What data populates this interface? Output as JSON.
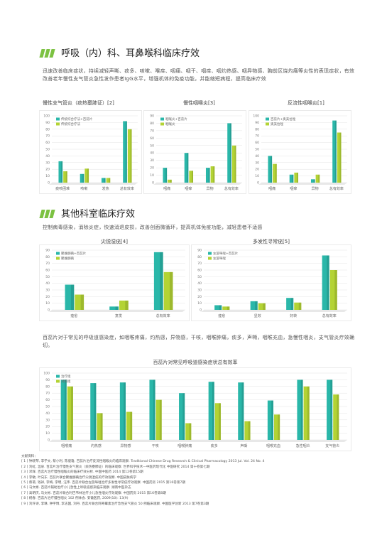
{
  "sections": [
    {
      "heading": "呼吸（内）科、耳鼻喉科临床疗效",
      "text": "迅速改善临床症状，持续减轻声嘶、痰多、咳嗽、喉痒、咽痛、咽干、咽痒、咽灼热感、咽异物感、胸前区烧灼痛等炎性的表现症状，有效改善老年慢性支气管炎急性发作患者IgG水平，增强机体的免疫功能，并能缩短病程，提高临床疗效"
    },
    {
      "heading": "其他科室临床疗效",
      "text": "控制病毒感染，消除炎症，快速消退皮损，改善创面微循环，提高机体免疫功能，减轻患者不适感",
      "text2": "百蕊片对于常见的呼吸道感染症，如咽喉疼痛，灼热感，异物感，干咳，咽喉肿痛，痰多，声嘶，咽喉充血，急慢性咽炎，支气管炎疗效确切。"
    }
  ],
  "chart_data": [
    {
      "type": "bar",
      "title": "慢性支气管炎（痰热壅肺证）[2]",
      "categories": [
        "痰咳困难",
        "咳嗽",
        "发热",
        "总有效率"
      ],
      "series": [
        {
          "name": "传统综合疗法+百蕊片",
          "color": "#2ab7a9",
          "values": [
            32,
            13,
            7,
            92
          ]
        },
        {
          "name": "传统综合疗法",
          "color": "#b3d334",
          "values": [
            17,
            21,
            7,
            80
          ]
        }
      ],
      "ylim": [
        0,
        100
      ],
      "yticks": [
        0,
        10,
        20,
        30,
        40,
        50,
        60,
        70,
        80,
        90,
        100
      ],
      "grid": true
    },
    {
      "type": "bar",
      "title": "慢性咽喉炎[3]",
      "categories": [
        "咽痛",
        "咽痒",
        "异物",
        "总有效率"
      ],
      "series": [
        {
          "name": "咽喉炎+百蕊片",
          "color": "#2ab7a9",
          "values": [
            20,
            40,
            20,
            80
          ]
        },
        {
          "name": "咽喉炎",
          "color": "#b3d334",
          "values": [
            4,
            16,
            22,
            50
          ]
        }
      ],
      "ylim": [
        0,
        90
      ],
      "yticks": [
        0,
        10,
        20,
        30,
        40,
        50,
        60,
        70,
        80,
        90
      ],
      "grid": true
    },
    {
      "type": "bar",
      "title": "反流性咽喉炎[1]",
      "categories": [
        "咽痛",
        "咽痒",
        "异物",
        "总有效率"
      ],
      "series": [
        {
          "name": "百蕊片+奥美拉唑",
          "color": "#2ab7a9",
          "values": [
            40,
            12,
            5,
            93
          ]
        },
        {
          "name": "奥美拉唑",
          "color": "#b3d334",
          "values": [
            28,
            15,
            12,
            75
          ]
        }
      ],
      "ylim": [
        0,
        100
      ],
      "yticks": [
        0,
        10,
        20,
        30,
        40,
        50,
        60,
        70,
        80,
        90,
        100
      ],
      "grid": true
    },
    {
      "type": "bar",
      "title": "尖锐湿疣[4]",
      "categories": [
        "痊愈",
        "复发",
        "总有效率"
      ],
      "series": [
        {
          "name": "聚维酮碘+百蕊片",
          "color": "#2ab7a9",
          "values": [
            38,
            5,
            87
          ]
        },
        {
          "name": "聚维酮碘",
          "color": "#b3d334",
          "values": [
            23,
            14,
            57
          ]
        }
      ],
      "ylim": [
        0,
        90
      ],
      "yticks": [
        0,
        10,
        20,
        30,
        40,
        50,
        60,
        70,
        80,
        90
      ],
      "grid": true
    },
    {
      "type": "bar",
      "title": "多发性寻常疣[5]",
      "categories": [
        "痊愈",
        "显效",
        "好转",
        "总有效率"
      ],
      "series": [
        {
          "name": "左旋咪唑+百蕊片",
          "color": "#2ab7a9",
          "values": [
            7,
            13,
            18,
            82
          ]
        },
        {
          "name": "左旋咪唑",
          "color": "#b3d334",
          "values": [
            5,
            10,
            11,
            60
          ]
        }
      ],
      "ylim": [
        0,
        90
      ],
      "yticks": [
        0,
        10,
        20,
        30,
        40,
        50,
        60,
        70,
        80,
        90
      ],
      "grid": true
    },
    {
      "type": "bar",
      "title": "百蕊片对常见呼吸道感染症状总有效率",
      "categories": [
        "咽喉痛",
        "灼热感",
        "异物感",
        "干咳",
        "咽喉肿痛",
        "痰多",
        "声嘶",
        "咽喉充血",
        "急性咽炎",
        "支气管炎"
      ],
      "series": [
        {
          "name": "治疗组",
          "color": "#2ab7a9",
          "values": [
            90,
            85,
            86,
            90,
            70,
            87,
            86,
            59,
            90,
            90
          ]
        },
        {
          "name": "对照组",
          "color": "#b3d334",
          "values": [
            80,
            40,
            42,
            60,
            25,
            55,
            28,
            38,
            80,
            68
          ]
        }
      ],
      "ylim": [
        0,
        100
      ],
      "yticks": [
        0,
        10,
        20,
        30,
        40,
        50,
        60,
        70,
        80,
        90,
        100
      ],
      "grid": true
    }
  ],
  "references": {
    "title": "文献资料：",
    "items": [
      "[ 1 ] 钟晓琴, 李学文, 蔡小利, 陈俊雄. 百蕊片治疗反流性咽喉炎的临床观察. Traditional Chinese Drug Research & Clinical Pharmacology 2013 Jul. Vol. 24 No. 4",
      "[ 2 ] 刘虹, 温泉. 百蕊片治疗慢性支气管炎（痰热壅肺证）的临床观察. 世界科学技术—中医药现代化 中医研究 2014 第十卷第七期",
      "[ 3 ] 邓辉. 百蕊片治疗慢性咽喉炎的临床疗效分析. 中国中医药 2014 第12卷第15期",
      "[ 4 ] 李敏, 叶向东. 百蕊片联合聚维酮碘治疗尖锐湿疣的疗效观察. 中国皮肤病学",
      "[ 5 ] 蔡菊, 钱祥, 李梅, 李明, 汪伟. 百蕊片联合左旋咪唑治疗多发性寻常疣疗效观察. 中国药房 2015 第16卷第7期",
      "[ 6 ] 马文彬. 百蕊片辅助治疗小儿急性上呼吸道感染临床观察. 湖南中医杂志",
      "[ 7 ] 高明庆, 马文彬. 百蕊片联合利巴韦林治疗小儿急性咽炎疗效观察. 中国药房 2015 第16卷第8期",
      "[ 8 ] 杨春. 百蕊片治疗慢性咽炎 102 例体会. 安徽医药, 2009(10): 13(9)",
      "[ 9 ] 刘许诗, 李琳, 钟宇博, 李志国, 刘丹. 百蕊片联合阿奇霉素治疗急性支气管炎 50 例临床观察. 中国医学创新 2013 第7卷第3期"
    ]
  }
}
